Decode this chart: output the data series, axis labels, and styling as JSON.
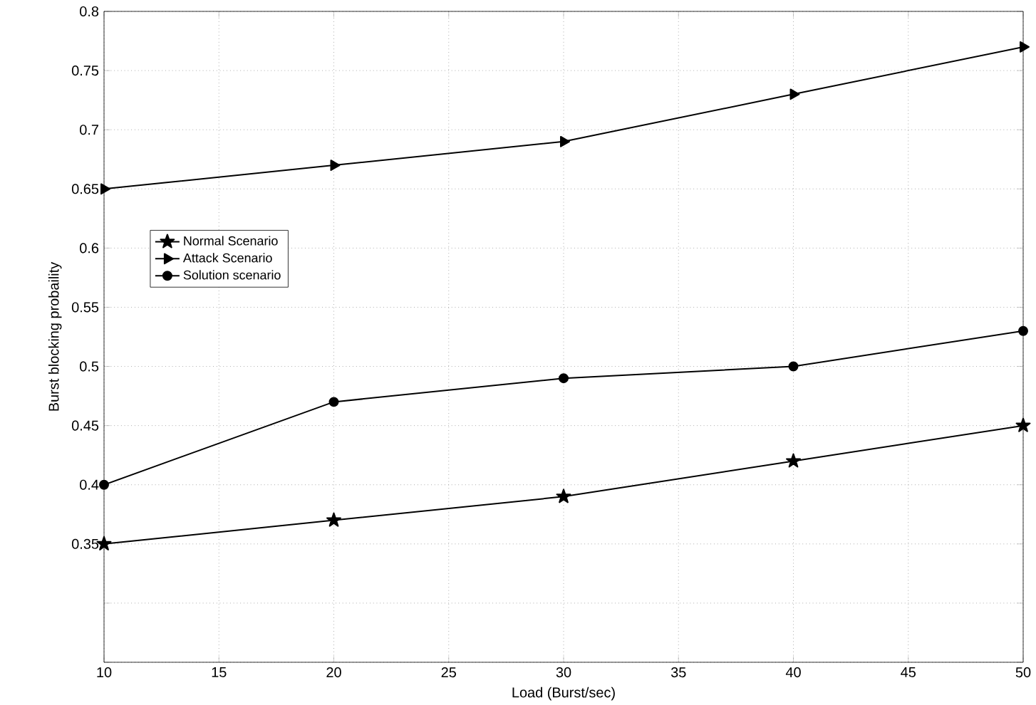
{
  "chart_data": {
    "type": "line",
    "xlabel": "Load (Burst/sec)",
    "ylabel": "Burst blocking probaility",
    "x": [
      10,
      20,
      30,
      40,
      50
    ],
    "xlim": [
      10,
      50
    ],
    "xticks": [
      10,
      15,
      20,
      25,
      30,
      35,
      40,
      45,
      50
    ],
    "ylim": [
      0.25,
      0.8
    ],
    "yticks": [
      {
        "value": 0.25,
        "label": null
      },
      {
        "value": 0.3,
        "label": null
      },
      0.35,
      0.4,
      0.45,
      0.5,
      0.55,
      0.6,
      0.65,
      0.7,
      0.75,
      0.8
    ],
    "grid": true,
    "legend": "left",
    "series": [
      {
        "name": "Normal Scenario",
        "color": "#000000",
        "marker": "star",
        "values": [
          0.35,
          0.37,
          0.39,
          0.42,
          0.45
        ]
      },
      {
        "name": "Attack Scenario",
        "color": "#000000",
        "marker": "triangle",
        "values": [
          0.65,
          0.67,
          0.69,
          0.73,
          0.77
        ]
      },
      {
        "name": "Solution scenario",
        "color": "#000000",
        "marker": "circle",
        "values": [
          0.4,
          0.47,
          0.49,
          0.5,
          0.53
        ]
      }
    ]
  }
}
